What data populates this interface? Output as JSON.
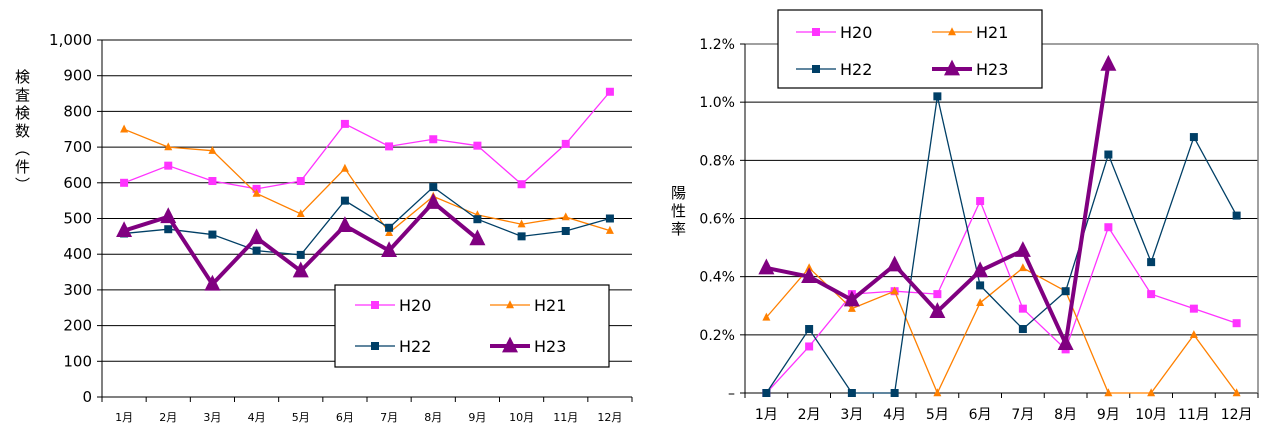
{
  "chart_data": [
    {
      "type": "line",
      "categories": [
        "1月",
        "2月",
        "3月",
        "4月",
        "5月",
        "6月",
        "7月",
        "8月",
        "9月",
        "10月",
        "11月",
        "12月"
      ],
      "ylabel": "検査検数（件）",
      "ylim": [
        0,
        1000
      ],
      "yticks": [
        "0",
        "100",
        "200",
        "300",
        "400",
        "500",
        "600",
        "700",
        "800",
        "900",
        "1,000"
      ],
      "grid": true,
      "legend_position": "bottom-right",
      "series": [
        {
          "name": "H20",
          "color": "#ff33ff",
          "marker": "square",
          "values": [
            600,
            648,
            605,
            583,
            605,
            765,
            702,
            722,
            704,
            596,
            709,
            855
          ]
        },
        {
          "name": "H21",
          "color": "#ff8000",
          "marker": "triangle",
          "values": [
            750,
            700,
            690,
            570,
            513,
            640,
            460,
            562,
            510,
            484,
            504,
            466
          ]
        },
        {
          "name": "H22",
          "color": "#003f66",
          "marker": "square",
          "values": [
            458,
            470,
            455,
            410,
            398,
            550,
            474,
            588,
            498,
            450,
            465,
            500
          ]
        },
        {
          "name": "H23",
          "color": "#800080",
          "marker": "triangle",
          "values": [
            466,
            505,
            316,
            446,
            353,
            480,
            410,
            545,
            443,
            null,
            null,
            null
          ]
        }
      ]
    },
    {
      "type": "line",
      "categories": [
        "1月",
        "2月",
        "3月",
        "4月",
        "5月",
        "6月",
        "7月",
        "8月",
        "9月",
        "10月",
        "11月",
        "12月"
      ],
      "ylabel": "陽性率",
      "ylim": [
        0,
        1.2
      ],
      "yticks": [
        "–",
        "0.2%",
        "0.4%",
        "0.6%",
        "0.8%",
        "1.0%",
        "1.2%"
      ],
      "grid": true,
      "legend_position": "top-left",
      "series": [
        {
          "name": "H20",
          "color": "#ff33ff",
          "marker": "square",
          "values": [
            0.0,
            0.16,
            0.34,
            0.35,
            0.34,
            0.66,
            0.29,
            0.15,
            0.57,
            0.34,
            0.29,
            0.24
          ]
        },
        {
          "name": "H21",
          "color": "#ff8000",
          "marker": "triangle",
          "values": [
            0.26,
            0.43,
            0.29,
            0.35,
            0.0,
            0.31,
            0.43,
            0.35,
            0.0,
            0.0,
            0.2,
            0.0
          ]
        },
        {
          "name": "H22",
          "color": "#003f66",
          "marker": "square",
          "values": [
            0.0,
            0.22,
            0.0,
            0.0,
            1.02,
            0.37,
            0.22,
            0.35,
            0.82,
            0.45,
            0.88,
            0.61
          ]
        },
        {
          "name": "H23",
          "color": "#800080",
          "marker": "triangle",
          "values": [
            0.43,
            0.4,
            0.32,
            0.44,
            0.28,
            0.42,
            0.49,
            0.17,
            1.13,
            null,
            null,
            null
          ]
        }
      ]
    }
  ]
}
